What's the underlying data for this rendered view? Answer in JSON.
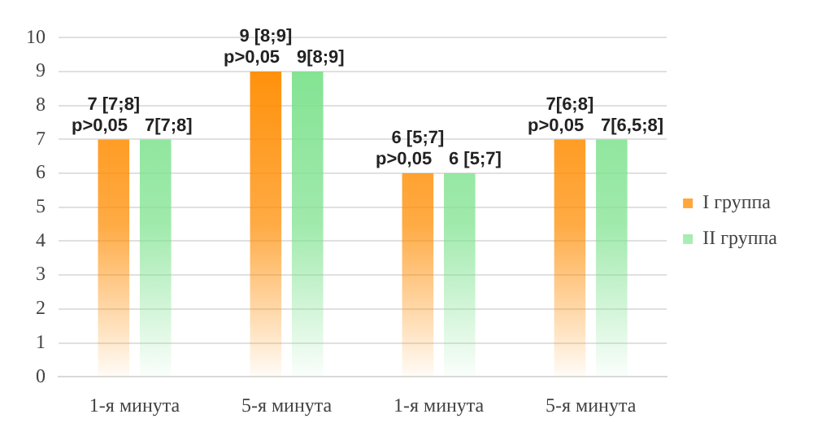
{
  "chart_data": {
    "type": "bar",
    "categories": [
      "1-я минута",
      "5-я минута",
      "1-я минута",
      "5-я минута"
    ],
    "series": [
      {
        "name": "I группа",
        "color": "#ff8c00",
        "values": [
          7,
          9,
          6,
          7
        ],
        "value_labels": [
          "7 [7;8]",
          "9 [8;9]",
          "6 [5;7]",
          "7[6;8]"
        ]
      },
      {
        "name": "II группа",
        "color": "#7ee28e",
        "values": [
          7,
          9,
          6,
          7
        ],
        "value_labels": [
          "7[7;8]",
          "9[8;9]",
          "6 [5;7]",
          "7[6,5;8]"
        ]
      }
    ],
    "annotations": [
      "p>0,05",
      "p>0,05",
      "p>0,05",
      "p>0,05"
    ],
    "ylim": [
      0,
      10
    ],
    "yticks": [
      0,
      1,
      2,
      3,
      4,
      5,
      6,
      7,
      8,
      9,
      10
    ],
    "grid": "y",
    "legend": "right"
  }
}
